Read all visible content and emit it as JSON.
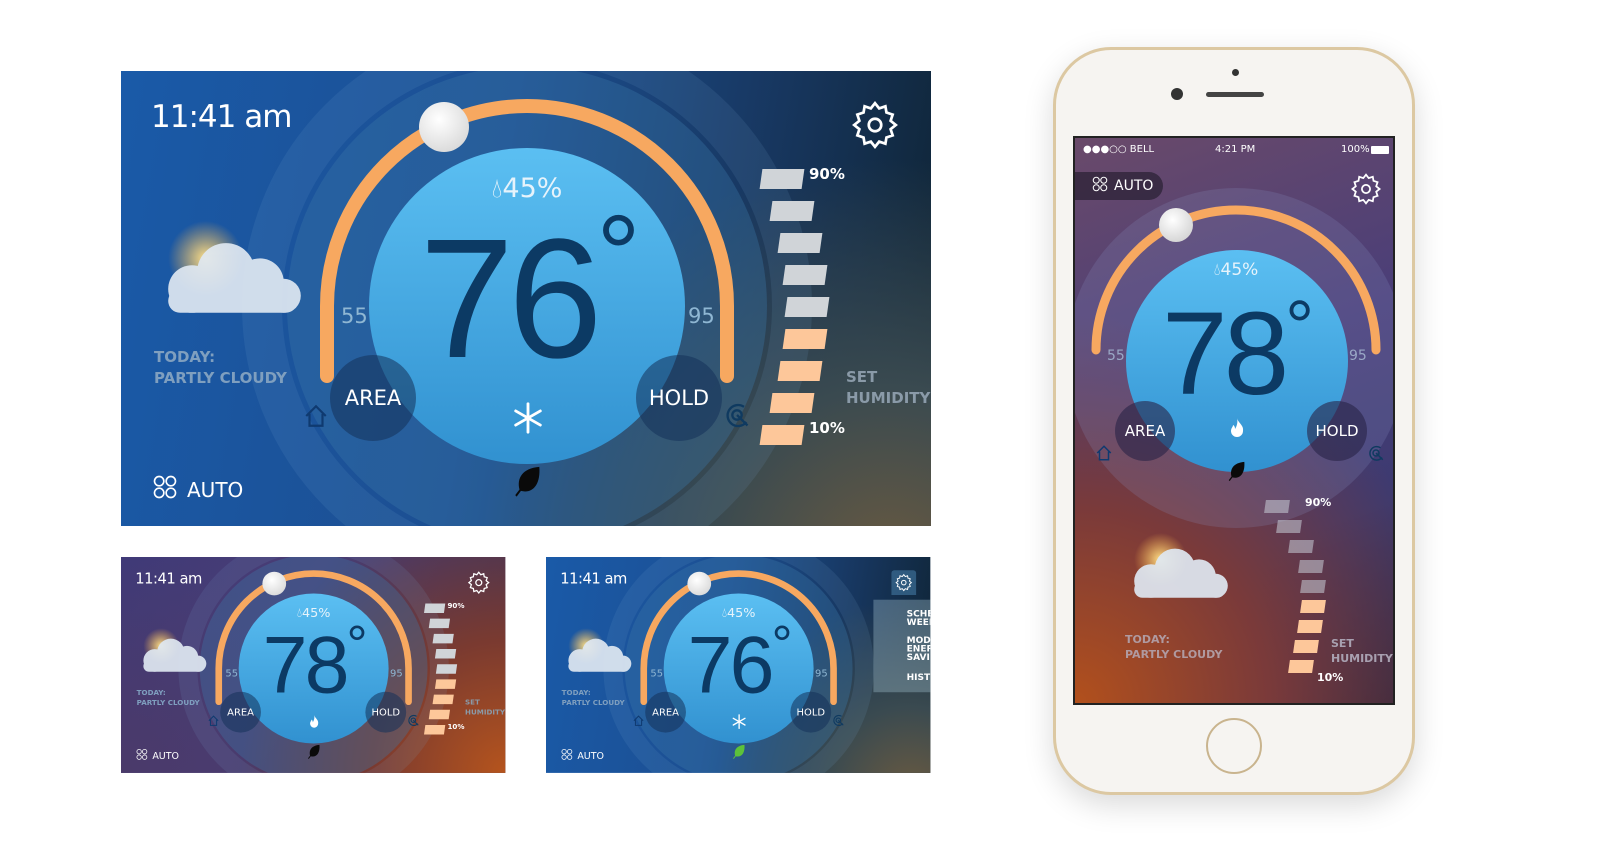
{
  "panels": [
    {
      "id": "large",
      "time": "11:41 am",
      "humidity": "45%",
      "temperature": "76",
      "degree": "°",
      "min": "55",
      "max": "95",
      "area": "AREA",
      "hold": "HOLD",
      "mode_icon": "snowflake-icon",
      "leaf_color": "#0a0a0a",
      "weather": "TODAY:",
      "weather_desc": "PARTLY CLOUDY",
      "fan": "AUTO",
      "hum_high": "90%",
      "hum_low": "10%",
      "set": "SET",
      "set2": "HUMIDITY",
      "humidity_level_bars": 4,
      "theme": "blue"
    },
    {
      "id": "small-heat",
      "time": "11:41 am",
      "humidity": "45%",
      "temperature": "78",
      "degree": "°",
      "min": "55",
      "max": "95",
      "area": "AREA",
      "hold": "HOLD",
      "mode_icon": "flame-icon",
      "leaf_color": "#0a0a0a",
      "weather": "TODAY:",
      "weather_desc": "PARTLY CLOUDY",
      "fan": "AUTO",
      "hum_high": "90%",
      "hum_low": "10%",
      "set": "SET",
      "set2": "HUMIDITY",
      "humidity_level_bars": 4,
      "theme": "purple"
    },
    {
      "id": "small-menu",
      "time": "11:41 am",
      "humidity": "45%",
      "temperature": "76",
      "degree": "°",
      "min": "55",
      "max": "95",
      "area": "AREA",
      "hold": "HOLD",
      "mode_icon": "snowflake-icon",
      "leaf_color": "#5cc23a",
      "weather": "TODAY:",
      "weather_desc": "PARTLY CLOUDY",
      "fan": "AUTO",
      "theme": "blue",
      "menu": [
        {
          "label": "SCHEDULE:",
          "value": "WEEK"
        },
        {
          "label": "MODE:",
          "value": "ENERGY SAVING"
        },
        {
          "label": "HISTORY",
          "value": ""
        }
      ]
    }
  ],
  "phone": {
    "status": {
      "carrier": "●●●○○ BELL",
      "time": "4:21 PM",
      "battery": "100%"
    },
    "fan": "AUTO",
    "humidity": "45%",
    "temperature": "78",
    "degree": "°",
    "min": "55",
    "max": "95",
    "area": "AREA",
    "hold": "HOLD",
    "mode_icon": "flame-icon",
    "hum_high": "90%",
    "hum_low": "10%",
    "weather": "TODAY:",
    "weather_desc": "PARTLY CLOUDY",
    "set": "SET",
    "set2": "HUMIDITY",
    "humidity_level_bars": 4
  },
  "colors": {
    "arc": "#f7a860",
    "knob": "#e8e8e8",
    "temp_text": "#0c3a64",
    "inner_circle": "#4aa9e3",
    "bar_off": "#d0d4d8",
    "bar_on": "#fdc79a"
  }
}
